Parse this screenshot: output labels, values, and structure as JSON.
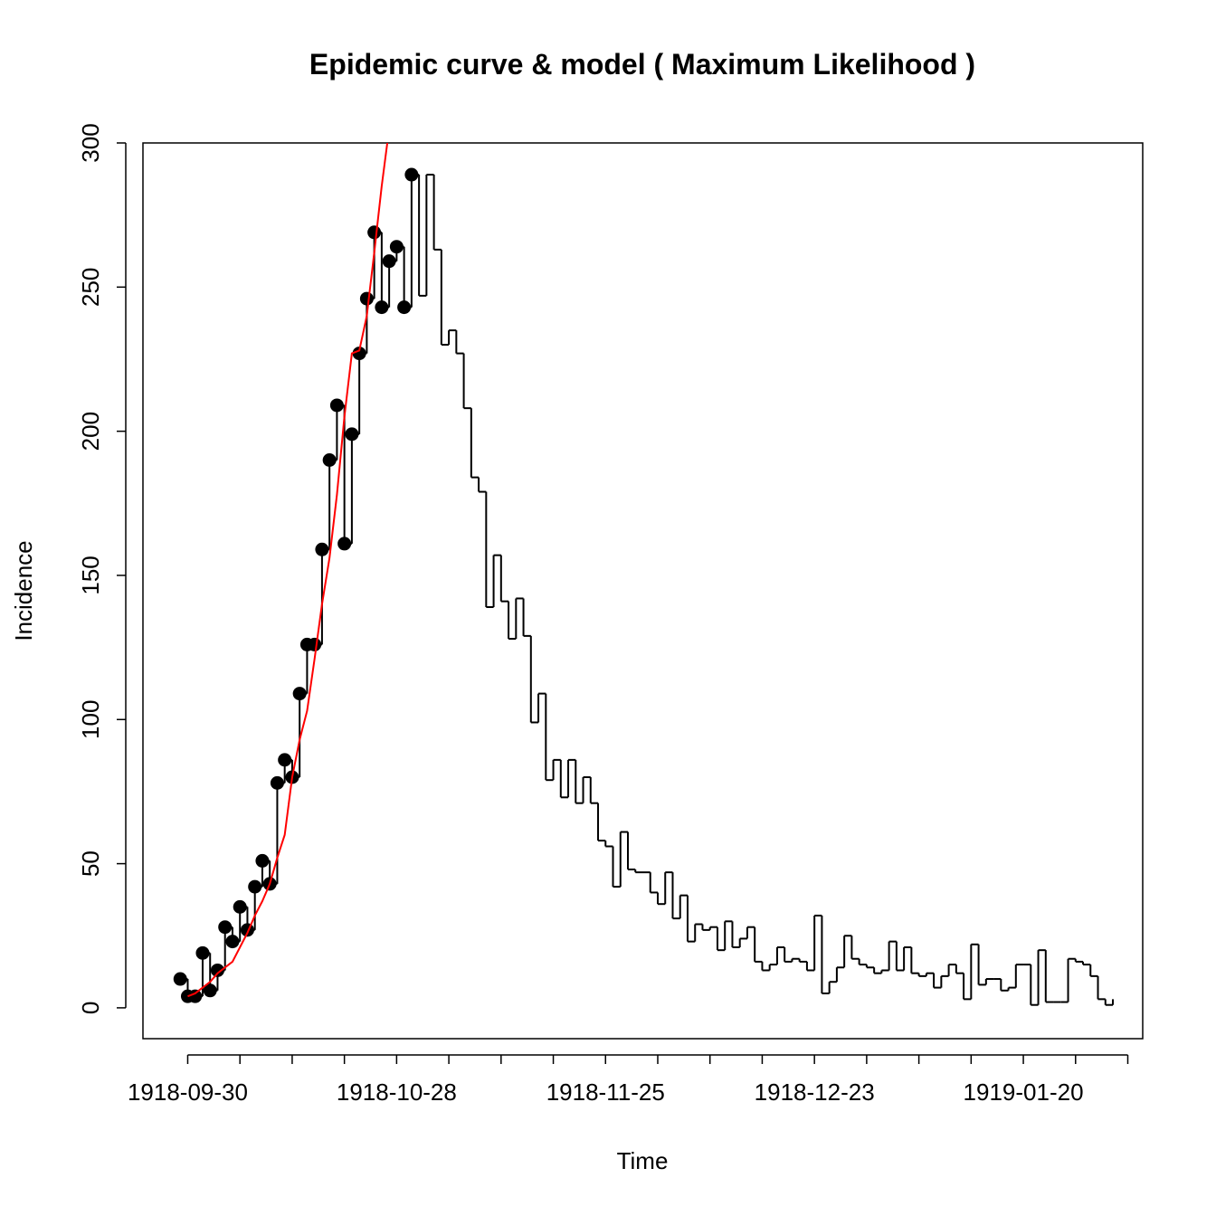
{
  "chart_data": {
    "type": "line",
    "title": "Epidemic curve & model ( Maximum Likelihood )",
    "xlabel": "Time",
    "ylabel": "Incidence",
    "x": [
      "1918-09-29",
      "1918-09-30",
      "1918-10-01",
      "1918-10-02",
      "1918-10-03",
      "1918-10-04",
      "1918-10-05",
      "1918-10-06",
      "1918-10-07",
      "1918-10-08",
      "1918-10-09",
      "1918-10-10",
      "1918-10-11",
      "1918-10-12",
      "1918-10-13",
      "1918-10-14",
      "1918-10-15",
      "1918-10-16",
      "1918-10-17",
      "1918-10-18",
      "1918-10-19",
      "1918-10-20",
      "1918-10-21",
      "1918-10-22",
      "1918-10-23",
      "1918-10-24",
      "1918-10-25",
      "1918-10-26",
      "1918-10-27",
      "1918-10-28",
      "1918-10-29",
      "1918-10-30",
      "1918-10-31",
      "1918-11-01",
      "1918-11-02",
      "1918-11-03",
      "1918-11-04",
      "1918-11-05",
      "1918-11-06",
      "1918-11-07",
      "1918-11-08",
      "1918-11-09",
      "1918-11-10",
      "1918-11-11",
      "1918-11-12",
      "1918-11-13",
      "1918-11-14",
      "1918-11-15",
      "1918-11-16",
      "1918-11-17",
      "1918-11-18",
      "1918-11-19",
      "1918-11-20",
      "1918-11-21",
      "1918-11-22",
      "1918-11-23",
      "1918-11-24",
      "1918-11-25",
      "1918-11-26",
      "1918-11-27",
      "1918-11-28",
      "1918-11-29",
      "1918-11-30",
      "1918-12-01",
      "1918-12-02",
      "1918-12-03",
      "1918-12-04",
      "1918-12-05",
      "1918-12-06",
      "1918-12-07",
      "1918-12-08",
      "1918-12-09",
      "1918-12-10",
      "1918-12-11",
      "1918-12-12",
      "1918-12-13",
      "1918-12-14",
      "1918-12-15",
      "1918-12-16",
      "1918-12-17",
      "1918-12-18",
      "1918-12-19",
      "1918-12-20",
      "1918-12-21",
      "1918-12-22",
      "1918-12-23",
      "1918-12-24",
      "1918-12-25",
      "1918-12-26",
      "1918-12-27",
      "1918-12-28",
      "1918-12-29",
      "1918-12-30",
      "1918-12-31",
      "1919-01-01",
      "1919-01-02",
      "1919-01-03",
      "1919-01-04",
      "1919-01-05",
      "1919-01-06",
      "1919-01-07",
      "1919-01-08",
      "1919-01-09",
      "1919-01-10",
      "1919-01-11",
      "1919-01-12",
      "1919-01-13",
      "1919-01-14",
      "1919-01-15",
      "1919-01-16",
      "1919-01-17",
      "1919-01-18",
      "1919-01-19",
      "1919-01-20",
      "1919-01-21",
      "1919-01-22",
      "1919-01-23",
      "1919-01-24",
      "1919-01-25",
      "1919-01-26",
      "1919-01-27",
      "1919-01-28",
      "1919-01-29",
      "1919-01-30",
      "1919-01-31",
      "1919-02-01"
    ],
    "series": [
      {
        "style": "step",
        "color": "#000000",
        "values": [
          10,
          4,
          4,
          19,
          6,
          13,
          28,
          23,
          35,
          27,
          42,
          51,
          43,
          78,
          86,
          80,
          109,
          126,
          126,
          159,
          190,
          209,
          161,
          199,
          227,
          246,
          269,
          243,
          259,
          264,
          243,
          289,
          247,
          289,
          263,
          230,
          235,
          227,
          208,
          184,
          179,
          139,
          157,
          141,
          128,
          142,
          129,
          99,
          109,
          79,
          86,
          73,
          86,
          71,
          80,
          71,
          58,
          56,
          42,
          61,
          48,
          47,
          47,
          40,
          36,
          47,
          31,
          39,
          23,
          29,
          27,
          28,
          20,
          30,
          21,
          24,
          28,
          16,
          13,
          15,
          21,
          16,
          17,
          16,
          13,
          32,
          5,
          9,
          14,
          25,
          17,
          15,
          14,
          12,
          13,
          23,
          13,
          21,
          12,
          11,
          12,
          7,
          11,
          15,
          12,
          3,
          22,
          8,
          10,
          10,
          6,
          7,
          15,
          15,
          1,
          20,
          2,
          2,
          2,
          17,
          16,
          15,
          11,
          3,
          1,
          3
        ]
      },
      {
        "style": "points",
        "color": "#000000",
        "values": [
          10,
          4,
          4,
          19,
          6,
          13,
          28,
          23,
          35,
          27,
          42,
          51,
          43,
          78,
          86,
          80,
          109,
          126,
          126,
          159,
          190,
          209,
          161,
          199,
          227,
          246,
          269,
          243,
          259,
          264,
          243,
          289,
          null,
          null,
          null,
          null,
          null,
          null,
          null,
          null,
          null,
          null,
          null,
          null,
          null,
          null,
          null,
          null,
          null,
          null,
          null,
          null,
          null,
          null,
          null,
          null,
          null,
          null,
          null,
          null,
          null,
          null,
          null,
          null,
          null,
          null,
          null,
          null,
          null,
          null,
          null,
          null,
          null,
          null,
          null,
          null,
          null,
          null,
          null,
          null,
          null,
          null,
          null,
          null,
          null,
          null,
          null,
          null,
          null,
          null,
          null,
          null,
          null,
          null,
          null,
          null,
          null,
          null,
          null,
          null,
          null,
          null,
          null,
          null,
          null,
          null,
          null,
          null,
          null,
          null,
          null,
          null,
          null,
          null,
          null,
          null,
          null,
          null,
          null,
          null,
          null,
          null,
          null,
          null,
          null,
          null
        ]
      },
      {
        "style": "line",
        "color": "#ff0000",
        "values": [
          null,
          4,
          5,
          7,
          9,
          12,
          14,
          16,
          21,
          26,
          32,
          37,
          43,
          52,
          60,
          80,
          93,
          103,
          121,
          140,
          156,
          178,
          205,
          227,
          228,
          240,
          262,
          285,
          305,
          null,
          null,
          null,
          null,
          null,
          null,
          null,
          null,
          null,
          null,
          null,
          null,
          null,
          null,
          null,
          null,
          null,
          null,
          null,
          null,
          null,
          null,
          null,
          null,
          null,
          null,
          null,
          null,
          null,
          null,
          null,
          null,
          null,
          null,
          null,
          null,
          null,
          null,
          null,
          null,
          null,
          null,
          null,
          null,
          null,
          null,
          null,
          null,
          null,
          null,
          null,
          null,
          null,
          null,
          null,
          null,
          null,
          null,
          null,
          null,
          null,
          null,
          null,
          null,
          null,
          null,
          null,
          null,
          null,
          null,
          null,
          null,
          null,
          null,
          null,
          null,
          null,
          null,
          null,
          null,
          null,
          null,
          null,
          null,
          null,
          null,
          null,
          null,
          null,
          null,
          null,
          null,
          null,
          null,
          null,
          null,
          null
        ]
      }
    ],
    "xlim": [
      "1918-09-24",
      "1919-02-05"
    ],
    "xticks": [
      "1918-09-30",
      {
        "value": "1918-10-07"
      },
      {
        "value": "1918-10-14"
      },
      {
        "value": "1918-10-21"
      },
      "1918-10-28",
      {
        "value": "1918-11-04"
      },
      {
        "value": "1918-11-11"
      },
      {
        "value": "1918-11-18"
      },
      "1918-11-25",
      {
        "value": "1918-12-02"
      },
      {
        "value": "1918-12-09"
      },
      {
        "value": "1918-12-16"
      },
      "1918-12-23",
      {
        "value": "1918-12-30"
      },
      {
        "value": "1919-01-06"
      },
      {
        "value": "1919-01-13"
      },
      "1919-01-20",
      {
        "value": "1919-01-27"
      },
      {
        "value": "1919-02-03"
      }
    ],
    "ylim": [
      -10.7,
      300
    ],
    "yticks": [
      0,
      50,
      100,
      150,
      200,
      250,
      300
    ]
  }
}
